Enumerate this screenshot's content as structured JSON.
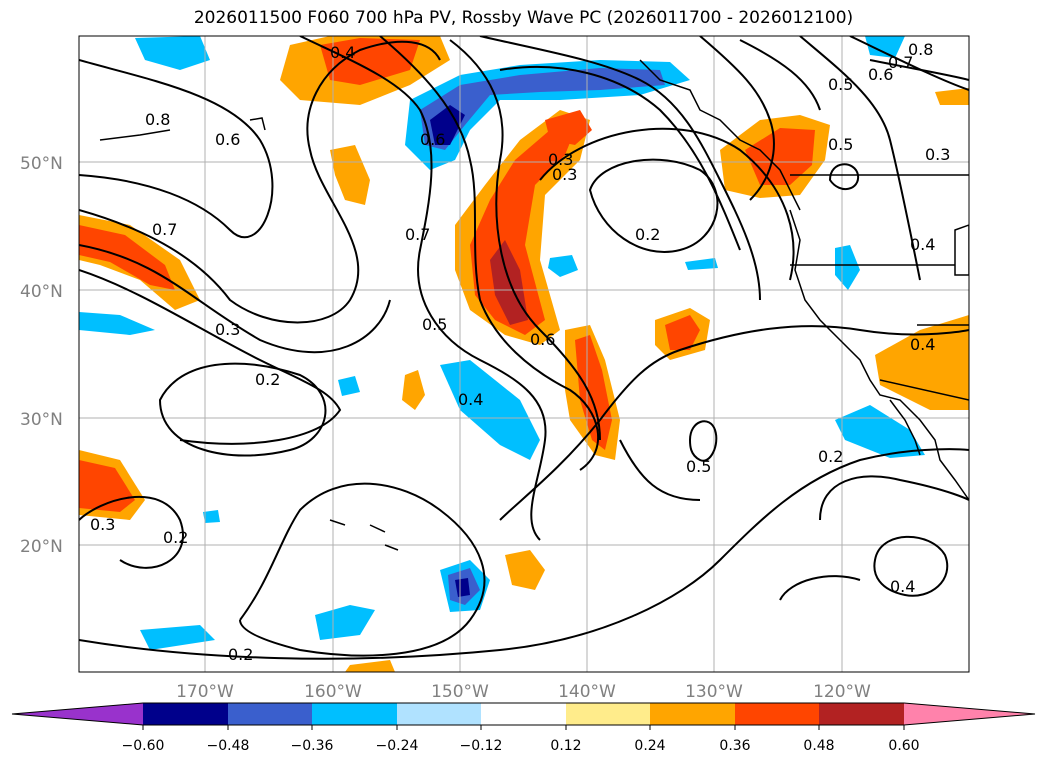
{
  "title": "2026011500 F060 700 hPa PV, Rossby Wave PC (2026011700 - 2026012100)",
  "map": {
    "lat_labels": [
      "50°N",
      "40°N",
      "30°N",
      "20°N"
    ],
    "lon_labels": [
      "170°W",
      "160°W",
      "150°W",
      "140°W",
      "130°W",
      "120°W"
    ],
    "contour_labels": [
      "0.8",
      "0.6",
      "0.4",
      "0.7",
      "0.3",
      "0.2",
      "0.6",
      "0.3",
      "0.7",
      "0.5",
      "0.4",
      "0.6",
      "0.3",
      "0.2",
      "0.5",
      "0.5",
      "0.6",
      "0.7",
      "0.8",
      "0.3",
      "0.4",
      "0.5",
      "0.2",
      "0.4",
      "0.4",
      "0.3",
      "0.2",
      "0.2"
    ]
  },
  "colorbar": {
    "ticks": [
      "−0.60",
      "−0.48",
      "−0.36",
      "−0.24",
      "−0.12",
      "0.12",
      "0.24",
      "0.36",
      "0.48",
      "0.60"
    ],
    "colors": [
      "#9932cc",
      "#00008b",
      "#3a5fcd",
      "#00bfff",
      "#b0e2ff",
      "#ffffff",
      "#ffec8b",
      "#ffa500",
      "#ff4500",
      "#b22222",
      "#ff82ab"
    ]
  }
}
